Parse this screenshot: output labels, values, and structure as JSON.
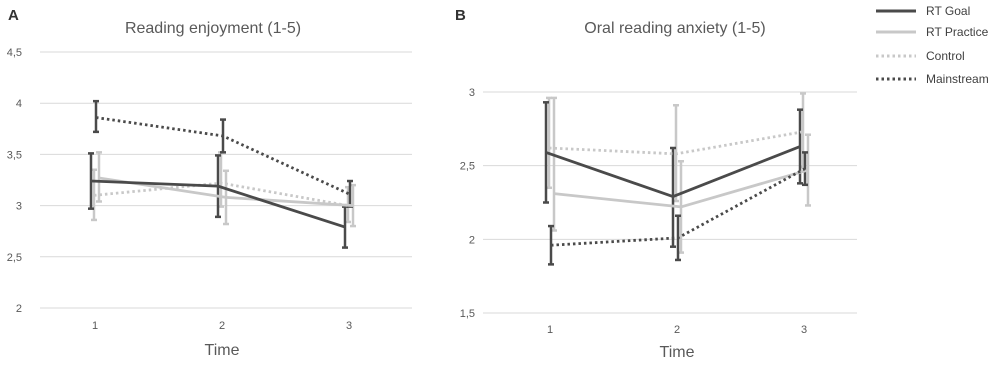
{
  "chart_data": [
    {
      "type": "line",
      "panel_letter": "A",
      "title": "Reading enjoyment (1-5)",
      "xlabel": "Time",
      "ylabel": "",
      "x": [
        1,
        2,
        3
      ],
      "x_tick_labels": [
        "1",
        "2",
        "3"
      ],
      "ylim": [
        2,
        4.5
      ],
      "y_ticks": [
        2,
        2.5,
        3,
        3.5,
        4,
        4.5
      ],
      "y_tick_labels": [
        "2",
        "2,5",
        "3",
        "3,5",
        "4",
        "4,5"
      ],
      "grid": true,
      "series": [
        {
          "name": "RT Goal",
          "values": [
            3.24,
            3.19,
            2.79
          ],
          "err_low": [
            2.97,
            2.89,
            2.59
          ],
          "err_high": [
            3.51,
            3.49,
            2.99
          ]
        },
        {
          "name": "RT Practice",
          "values": [
            3.27,
            3.08,
            3.0
          ],
          "err_low": [
            3.04,
            2.82,
            2.8
          ],
          "err_high": [
            3.52,
            3.34,
            3.2
          ]
        },
        {
          "name": "Control",
          "values": [
            3.1,
            3.22,
            3.0
          ],
          "err_low": [
            2.86,
            2.99,
            2.84
          ],
          "err_high": [
            3.35,
            3.52,
            3.18
          ]
        },
        {
          "name": "Mainstream",
          "values": [
            3.86,
            3.68,
            3.11
          ],
          "err_low": [
            3.72,
            3.52,
            2.99
          ],
          "err_high": [
            4.02,
            3.84,
            3.24
          ]
        }
      ]
    },
    {
      "type": "line",
      "panel_letter": "B",
      "title": "Oral reading anxiety (1-5)",
      "xlabel": "Time",
      "ylabel": "",
      "x": [
        1,
        2,
        3
      ],
      "x_tick_labels": [
        "1",
        "2",
        "3"
      ],
      "ylim": [
        1.5,
        3
      ],
      "y_ticks": [
        1.5,
        2,
        2.5,
        3
      ],
      "y_tick_labels": [
        "1,5",
        "2",
        "2,5",
        "3"
      ],
      "grid": true,
      "series": [
        {
          "name": "RT Goal",
          "values": [
            2.59,
            2.29,
            2.63
          ],
          "err_low": [
            2.25,
            1.95,
            2.38
          ],
          "err_high": [
            2.93,
            2.62,
            2.88
          ]
        },
        {
          "name": "RT Practice",
          "values": [
            2.31,
            2.22,
            2.47
          ],
          "err_low": [
            2.06,
            1.91,
            2.23
          ],
          "err_high": [
            2.96,
            2.53,
            2.71
          ]
        },
        {
          "name": "Control",
          "values": [
            2.62,
            2.58,
            2.73
          ],
          "err_low": [
            2.35,
            2.26,
            2.49
          ],
          "err_high": [
            2.96,
            2.91,
            2.99
          ]
        },
        {
          "name": "Mainstream",
          "values": [
            1.96,
            2.01,
            2.48
          ],
          "err_low": [
            1.83,
            1.86,
            2.37
          ],
          "err_high": [
            2.09,
            2.16,
            2.59
          ]
        }
      ]
    }
  ],
  "legend": {
    "position": "top-right",
    "items": [
      {
        "label": "RT Goal",
        "color": "#4a4a4a",
        "dash": "solid"
      },
      {
        "label": "RT Practice",
        "color": "#c8c8c8",
        "dash": "solid"
      },
      {
        "label": "Control",
        "color": "#c8c8c8",
        "dash": "dotted"
      },
      {
        "label": "Mainstream",
        "color": "#4a4a4a",
        "dash": "dotted"
      }
    ]
  },
  "series_styles": {
    "RT Goal": {
      "color": "#4a4a4a",
      "dash": "solid"
    },
    "RT Practice": {
      "color": "#c8c8c8",
      "dash": "solid"
    },
    "Control": {
      "color": "#c8c8c8",
      "dash": "dotted"
    },
    "Mainstream": {
      "color": "#4a4a4a",
      "dash": "dotted"
    }
  },
  "colors": {
    "dark": "#4a4a4a",
    "light": "#c8c8c8",
    "grid": "#d9d9d9",
    "text": "#595959"
  }
}
